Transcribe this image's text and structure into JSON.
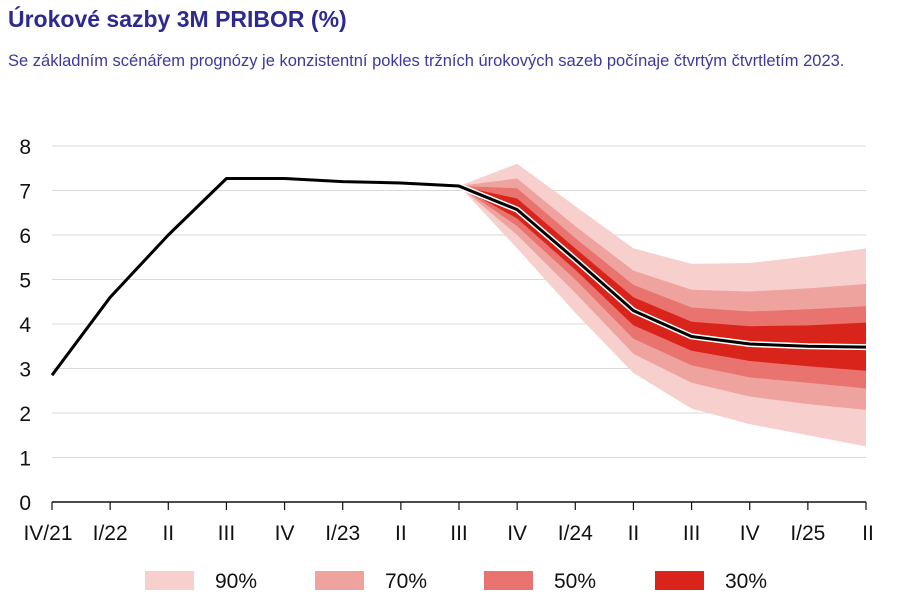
{
  "title": "Úrokové sazby 3M PRIBOR (%)",
  "subtitle": "Se základním scénářem prognózy je konzistentní pokles tržních úrokových sazeb počínaje čtvrtým čtvrtletím 2023.",
  "chart_data": {
    "type": "area",
    "title": "Úrokové sazby 3M PRIBOR (%)",
    "xlabel": "",
    "ylabel": "",
    "ylim": [
      0,
      8
    ],
    "yticks": [
      0,
      1,
      2,
      3,
      4,
      5,
      6,
      7,
      8
    ],
    "grid": true,
    "categories": [
      "IV/21",
      "I/22",
      "II",
      "III",
      "IV",
      "I/23",
      "II",
      "III",
      "IV",
      "I/24",
      "II",
      "III",
      "IV",
      "I/25",
      "II"
    ],
    "series": [
      {
        "name": "3M PRIBOR",
        "values": [
          2.85,
          4.6,
          6.0,
          7.27,
          7.27,
          7.2,
          7.17,
          7.1,
          6.57,
          5.45,
          4.3,
          3.72,
          3.55,
          3.5,
          3.48
        ]
      }
    ],
    "fan": {
      "start_index": 7,
      "bands": [
        {
          "name": "90%",
          "color": "#f7cfcd",
          "lower": [
            7.1,
            5.7,
            4.25,
            2.9,
            2.1,
            1.75,
            1.5,
            1.25
          ],
          "upper": [
            7.1,
            7.6,
            6.65,
            5.7,
            5.35,
            5.37,
            5.52,
            5.7
          ]
        },
        {
          "name": "70%",
          "color": "#efa39f",
          "lower": [
            7.1,
            6.0,
            4.7,
            3.33,
            2.68,
            2.37,
            2.2,
            2.07
          ],
          "upper": [
            7.1,
            7.27,
            6.2,
            5.2,
            4.77,
            4.73,
            4.8,
            4.9
          ]
        },
        {
          "name": "50%",
          "color": "#e9736e",
          "lower": [
            7.1,
            6.2,
            5.0,
            3.67,
            3.07,
            2.8,
            2.68,
            2.55
          ],
          "upper": [
            7.1,
            7.05,
            5.93,
            4.88,
            4.37,
            4.28,
            4.33,
            4.4
          ]
        },
        {
          "name": "30%",
          "color": "#d9241c",
          "lower": [
            7.1,
            6.37,
            5.22,
            3.97,
            3.4,
            3.17,
            3.05,
            2.95
          ],
          "upper": [
            7.1,
            6.82,
            5.7,
            4.6,
            4.05,
            3.95,
            3.97,
            4.03
          ]
        }
      ]
    },
    "legend": {
      "position": "bottom",
      "items": [
        {
          "label": "90%",
          "color": "#f7cfcd"
        },
        {
          "label": "70%",
          "color": "#efa39f"
        },
        {
          "label": "50%",
          "color": "#e9736e"
        },
        {
          "label": "30%",
          "color": "#d9241c"
        }
      ]
    }
  }
}
